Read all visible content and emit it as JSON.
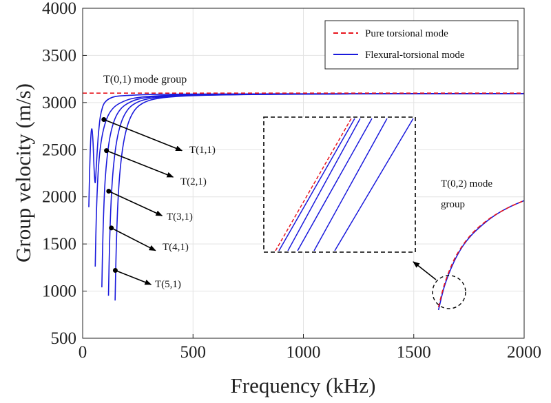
{
  "chart_data": {
    "type": "line",
    "xlabel": "Frequency (kHz)",
    "ylabel": "Group velocity (m/s)",
    "xlim": [
      0,
      2000
    ],
    "ylim": [
      500,
      4000
    ],
    "xticks": [
      "0",
      "500",
      "1000",
      "1500",
      "2000"
    ],
    "yticks": [
      "500",
      "1000",
      "1500",
      "2000",
      "2500",
      "3000",
      "3500",
      "4000"
    ],
    "grid": true,
    "legend_position": "top-right",
    "legend": [
      {
        "label": "Pure torsional mode",
        "style": "dashed",
        "color": "#e8141c"
      },
      {
        "label": "Flexural-torsional mode",
        "style": "solid",
        "color": "#1a1adc"
      }
    ],
    "series": [
      {
        "name": "Pure torsional mode",
        "style": "dashed",
        "color": "#e8141c",
        "x": [
          0,
          2000
        ],
        "y": [
          3100,
          3100
        ]
      },
      {
        "name": "Pure torsional mode",
        "style": "dashed",
        "color": "#e8141c",
        "x": [
          1612,
          1640,
          1680,
          1720,
          1760,
          1800,
          1850,
          1900,
          1950,
          2000
        ],
        "y": [
          830,
          1080,
          1320,
          1480,
          1600,
          1690,
          1780,
          1850,
          1910,
          1960
        ]
      },
      {
        "name": "Flexural-torsional mode",
        "style": "solid",
        "color": "#1a1adc",
        "x": [
          1612,
          1640,
          1680,
          1720,
          1760,
          1800,
          1850,
          1900,
          1950,
          2000
        ],
        "y": [
          800,
          1060,
          1300,
          1470,
          1590,
          1680,
          1775,
          1850,
          1910,
          1960
        ]
      },
      {
        "name": "Flexural-torsional mode",
        "style": "solid",
        "color": "#1a1adc",
        "x": [
          28,
          32,
          37,
          42,
          47,
          52,
          57,
          62,
          67,
          72,
          80,
          90,
          100,
          120,
          150,
          200,
          300,
          500,
          800,
          1200,
          2000
        ],
        "y": [
          1890,
          2300,
          2630,
          2720,
          2580,
          2290,
          2150,
          2330,
          2520,
          2680,
          2850,
          2950,
          3000,
          3040,
          3065,
          3075,
          3085,
          3090,
          3092,
          3094,
          3095
        ]
      },
      {
        "name": "Flexural-torsional mode",
        "style": "solid",
        "color": "#1a1adc",
        "x": [
          57,
          62,
          70,
          80,
          95,
          115,
          140,
          170,
          220,
          300,
          450,
          700,
          1100,
          2000
        ],
        "y": [
          1260,
          1800,
          2250,
          2520,
          2720,
          2860,
          2945,
          2995,
          3040,
          3065,
          3080,
          3088,
          3092,
          3095
        ]
      },
      {
        "name": "Flexural-torsional mode",
        "style": "solid",
        "color": "#1a1adc",
        "x": [
          87,
          92,
          100,
          110,
          125,
          145,
          170,
          200,
          250,
          330,
          480,
          750,
          1150,
          2000
        ],
        "y": [
          1040,
          1600,
          2100,
          2400,
          2650,
          2820,
          2925,
          2985,
          3035,
          3062,
          3078,
          3087,
          3092,
          3095
        ]
      },
      {
        "name": "Flexural-torsional mode",
        "style": "solid",
        "color": "#1a1adc",
        "x": [
          117,
          122,
          130,
          140,
          155,
          175,
          200,
          230,
          280,
          360,
          510,
          780,
          1200,
          2000
        ],
        "y": [
          950,
          1500,
          2000,
          2330,
          2600,
          2790,
          2910,
          2980,
          3030,
          3060,
          3077,
          3087,
          3092,
          3095
        ]
      },
      {
        "name": "Flexural-torsional mode",
        "style": "solid",
        "color": "#1a1adc",
        "x": [
          147,
          152,
          160,
          170,
          185,
          205,
          230,
          260,
          310,
          390,
          540,
          810,
          1250,
          2000
        ],
        "y": [
          900,
          1440,
          1950,
          2290,
          2570,
          2770,
          2900,
          2975,
          3028,
          3058,
          3076,
          3086,
          3092,
          3095
        ]
      }
    ],
    "annotations": [
      {
        "text": "T(0,1) mode group"
      },
      {
        "text": "T(1,1)",
        "dot": [
          96,
          2820
        ],
        "arrow_to": [
          450,
          2490
        ]
      },
      {
        "text": "T(2,1)",
        "dot": [
          108,
          2490
        ],
        "arrow_to": [
          410,
          2210
        ]
      },
      {
        "text": "T(3,1)",
        "dot": [
          118,
          2060
        ],
        "arrow_to": [
          360,
          1800
        ]
      },
      {
        "text": "T(4,1)",
        "dot": [
          130,
          1670
        ],
        "arrow_to": [
          330,
          1430
        ]
      },
      {
        "text": "T(5,1)",
        "dot": [
          148,
          1220
        ],
        "arrow_to": [
          310,
          1070
        ]
      },
      {
        "text": "T(0,2) mode group"
      }
    ],
    "inset": {
      "description_lines": 6
    }
  }
}
